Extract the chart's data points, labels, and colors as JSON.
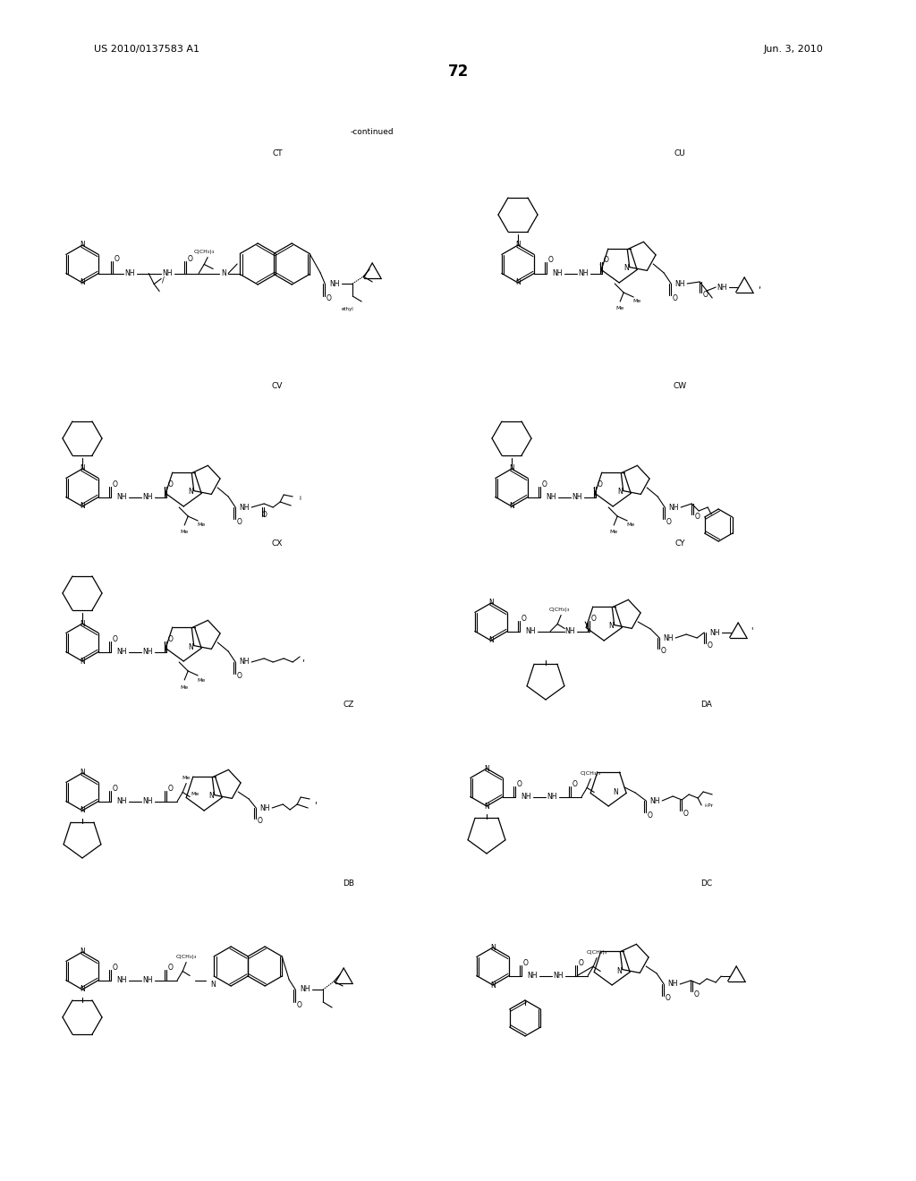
{
  "patent_number": "US 2010/0137583 A1",
  "patent_date": "Jun. 3, 2010",
  "page_number": "72",
  "continued": "-continued",
  "labels": [
    "CT",
    "CU",
    "CV",
    "CW",
    "CX",
    "CY",
    "CZ",
    "DA",
    "DB",
    "DC"
  ],
  "bg_color": "#ffffff",
  "text_color": "#000000"
}
